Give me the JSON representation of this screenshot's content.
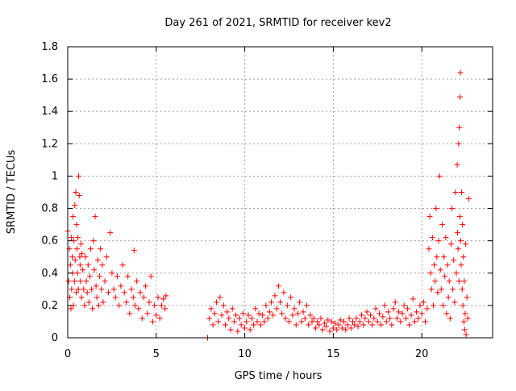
{
  "chart_data": {
    "type": "scatter",
    "title": "Day 261 of 2021, SRMTID for receiver kev2",
    "xlabel": "GPS time / hours",
    "ylabel": "SRMTID / TECUs",
    "xlim": [
      0,
      24
    ],
    "ylim": [
      0,
      1.8
    ],
    "grid": true,
    "marker": "+",
    "marker_color": "#ff0000",
    "x_ticks": [
      0,
      5,
      10,
      15,
      20
    ],
    "x_tick_labels": [
      "0",
      "5",
      "10",
      "15",
      "20"
    ],
    "y_ticks": [
      0,
      0.2,
      0.4,
      0.6,
      0.8,
      1.0,
      1.2,
      1.4,
      1.6,
      1.8
    ],
    "y_tick_labels": [
      "0",
      "0.2",
      "0.4",
      "0.6",
      "0.8",
      "1",
      "1.2",
      "1.4",
      "1.6",
      "1.8"
    ],
    "series": [
      {
        "name": "SRMTID",
        "points": [
          [
            0.0,
            0.66
          ],
          [
            0.05,
            0.35
          ],
          [
            0.1,
            0.55
          ],
          [
            0.12,
            0.25
          ],
          [
            0.15,
            0.45
          ],
          [
            0.18,
            0.18
          ],
          [
            0.2,
            0.62
          ],
          [
            0.22,
            0.3
          ],
          [
            0.25,
            0.5
          ],
          [
            0.28,
            0.4
          ],
          [
            0.3,
            0.75
          ],
          [
            0.32,
            0.2
          ],
          [
            0.35,
            0.6
          ],
          [
            0.38,
            0.35
          ],
          [
            0.4,
            0.82
          ],
          [
            0.42,
            0.48
          ],
          [
            0.45,
            0.9
          ],
          [
            0.48,
            0.28
          ],
          [
            0.5,
            0.7
          ],
          [
            0.52,
            0.55
          ],
          [
            0.55,
            0.4
          ],
          [
            0.58,
            0.62
          ],
          [
            0.6,
            0.3
          ],
          [
            0.62,
            1.0
          ],
          [
            0.65,
            0.88
          ],
          [
            0.68,
            0.5
          ],
          [
            0.7,
            0.45
          ],
          [
            0.72,
            0.35
          ],
          [
            0.75,
            0.58
          ],
          [
            0.78,
            0.25
          ],
          [
            0.8,
            0.52
          ],
          [
            0.85,
            0.42
          ],
          [
            0.9,
            0.3
          ],
          [
            0.95,
            0.2
          ],
          [
            1.0,
            0.5
          ],
          [
            1.05,
            0.35
          ],
          [
            1.1,
            0.28
          ],
          [
            1.15,
            0.45
          ],
          [
            1.2,
            0.22
          ],
          [
            1.25,
            0.38
          ],
          [
            1.3,
            0.55
          ],
          [
            1.35,
            0.3
          ],
          [
            1.4,
            0.18
          ],
          [
            1.45,
            0.6
          ],
          [
            1.5,
            0.42
          ],
          [
            1.55,
            0.75
          ],
          [
            1.6,
            0.32
          ],
          [
            1.65,
            0.25
          ],
          [
            1.7,
            0.48
          ],
          [
            1.75,
            0.2
          ],
          [
            1.8,
            0.38
          ],
          [
            1.85,
            0.55
          ],
          [
            1.9,
            0.3
          ],
          [
            1.95,
            0.45
          ],
          [
            2.0,
            0.22
          ],
          [
            2.1,
            0.35
          ],
          [
            2.2,
            0.5
          ],
          [
            2.3,
            0.28
          ],
          [
            2.4,
            0.65
          ],
          [
            2.5,
            0.4
          ],
          [
            2.6,
            0.3
          ],
          [
            2.7,
            0.25
          ],
          [
            2.8,
            0.38
          ],
          [
            2.9,
            0.2
          ],
          [
            3.0,
            0.32
          ],
          [
            3.1,
            0.45
          ],
          [
            3.2,
            0.28
          ],
          [
            3.3,
            0.22
          ],
          [
            3.4,
            0.38
          ],
          [
            3.5,
            0.15
          ],
          [
            3.6,
            0.3
          ],
          [
            3.7,
            0.25
          ],
          [
            3.75,
            0.54
          ],
          [
            3.8,
            0.2
          ],
          [
            3.9,
            0.35
          ],
          [
            4.0,
            0.18
          ],
          [
            4.1,
            0.28
          ],
          [
            4.2,
            0.12
          ],
          [
            4.3,
            0.25
          ],
          [
            4.4,
            0.32
          ],
          [
            4.5,
            0.15
          ],
          [
            4.6,
            0.22
          ],
          [
            4.7,
            0.38
          ],
          [
            4.8,
            0.1
          ],
          [
            4.9,
            0.2
          ],
          [
            5.0,
            0.14
          ],
          [
            5.1,
            0.25
          ],
          [
            5.2,
            0.12
          ],
          [
            5.3,
            0.2
          ],
          [
            5.4,
            0.24
          ],
          [
            5.5,
            0.18
          ],
          [
            5.55,
            0.26
          ],
          [
            7.9,
            0.0
          ],
          [
            8.0,
            0.12
          ],
          [
            8.1,
            0.18
          ],
          [
            8.2,
            0.08
          ],
          [
            8.3,
            0.15
          ],
          [
            8.4,
            0.22
          ],
          [
            8.5,
            0.1
          ],
          [
            8.6,
            0.25
          ],
          [
            8.7,
            0.14
          ],
          [
            8.8,
            0.2
          ],
          [
            8.9,
            0.08
          ],
          [
            9.0,
            0.16
          ],
          [
            9.1,
            0.12
          ],
          [
            9.2,
            0.05
          ],
          [
            9.3,
            0.18
          ],
          [
            9.4,
            0.1
          ],
          [
            9.5,
            0.14
          ],
          [
            9.6,
            0.04
          ],
          [
            9.7,
            0.12
          ],
          [
            9.8,
            0.08
          ],
          [
            9.9,
            0.15
          ],
          [
            10.0,
            0.06
          ],
          [
            10.1,
            0.1
          ],
          [
            10.2,
            0.14
          ],
          [
            10.3,
            0.05
          ],
          [
            10.4,
            0.12
          ],
          [
            10.5,
            0.08
          ],
          [
            10.6,
            0.18
          ],
          [
            10.7,
            0.1
          ],
          [
            10.8,
            0.15
          ],
          [
            10.9,
            0.08
          ],
          [
            11.0,
            0.14
          ],
          [
            11.1,
            0.1
          ],
          [
            11.2,
            0.2
          ],
          [
            11.3,
            0.12
          ],
          [
            11.4,
            0.16
          ],
          [
            11.5,
            0.22
          ],
          [
            11.6,
            0.14
          ],
          [
            11.7,
            0.26
          ],
          [
            11.8,
            0.18
          ],
          [
            11.9,
            0.32
          ],
          [
            12.0,
            0.22
          ],
          [
            12.1,
            0.15
          ],
          [
            12.2,
            0.28
          ],
          [
            12.3,
            0.12
          ],
          [
            12.4,
            0.2
          ],
          [
            12.5,
            0.1
          ],
          [
            12.6,
            0.25
          ],
          [
            12.7,
            0.14
          ],
          [
            12.8,
            0.18
          ],
          [
            12.9,
            0.08
          ],
          [
            13.0,
            0.15
          ],
          [
            13.1,
            0.22
          ],
          [
            13.2,
            0.1
          ],
          [
            13.3,
            0.16
          ],
          [
            13.4,
            0.12
          ],
          [
            13.5,
            0.2
          ],
          [
            13.6,
            0.08
          ],
          [
            13.7,
            0.14
          ],
          [
            13.8,
            0.1
          ],
          [
            13.9,
            0.12
          ],
          [
            14.0,
            0.06
          ],
          [
            14.1,
            0.1
          ],
          [
            14.2,
            0.08
          ],
          [
            14.3,
            0.12
          ],
          [
            14.4,
            0.05
          ],
          [
            14.5,
            0.09
          ],
          [
            14.6,
            0.07
          ],
          [
            14.7,
            0.11
          ],
          [
            14.8,
            0.04
          ],
          [
            14.9,
            0.1
          ],
          [
            15.0,
            0.06
          ],
          [
            15.1,
            0.09
          ],
          [
            15.2,
            0.05
          ],
          [
            15.3,
            0.08
          ],
          [
            15.4,
            0.11
          ],
          [
            15.5,
            0.06
          ],
          [
            15.6,
            0.1
          ],
          [
            15.7,
            0.05
          ],
          [
            15.8,
            0.08
          ],
          [
            15.9,
            0.12
          ],
          [
            16.0,
            0.06
          ],
          [
            16.1,
            0.1
          ],
          [
            16.2,
            0.08
          ],
          [
            16.3,
            0.12
          ],
          [
            16.4,
            0.07
          ],
          [
            16.5,
            0.1
          ],
          [
            16.6,
            0.14
          ],
          [
            16.7,
            0.08
          ],
          [
            16.8,
            0.12
          ],
          [
            16.9,
            0.16
          ],
          [
            17.0,
            0.1
          ],
          [
            17.1,
            0.14
          ],
          [
            17.2,
            0.08
          ],
          [
            17.3,
            0.12
          ],
          [
            17.4,
            0.18
          ],
          [
            17.5,
            0.1
          ],
          [
            17.6,
            0.15
          ],
          [
            17.7,
            0.08
          ],
          [
            17.8,
            0.13
          ],
          [
            17.9,
            0.2
          ],
          [
            18.0,
            0.1
          ],
          [
            18.1,
            0.16
          ],
          [
            18.2,
            0.12
          ],
          [
            18.3,
            0.08
          ],
          [
            18.4,
            0.18
          ],
          [
            18.5,
            0.22
          ],
          [
            18.6,
            0.12
          ],
          [
            18.7,
            0.16
          ],
          [
            18.8,
            0.1
          ],
          [
            18.9,
            0.15
          ],
          [
            19.0,
            0.2
          ],
          [
            19.1,
            0.12
          ],
          [
            19.2,
            0.18
          ],
          [
            19.3,
            0.08
          ],
          [
            19.4,
            0.14
          ],
          [
            19.5,
            0.24
          ],
          [
            19.6,
            0.1
          ],
          [
            19.7,
            0.16
          ],
          [
            19.8,
            0.12
          ],
          [
            19.9,
            0.2
          ],
          [
            20.0,
            0.15
          ],
          [
            20.1,
            0.22
          ],
          [
            20.2,
            0.1
          ],
          [
            20.3,
            0.18
          ],
          [
            20.4,
            0.55
          ],
          [
            20.45,
            0.75
          ],
          [
            20.5,
            0.4
          ],
          [
            20.55,
            0.3
          ],
          [
            20.6,
            0.62
          ],
          [
            20.65,
            0.2
          ],
          [
            20.7,
            0.45
          ],
          [
            20.75,
            0.35
          ],
          [
            20.8,
            0.8
          ],
          [
            20.85,
            0.5
          ],
          [
            20.9,
            0.28
          ],
          [
            20.95,
            0.6
          ],
          [
            21.0,
            1.0
          ],
          [
            21.05,
            0.42
          ],
          [
            21.1,
            0.3
          ],
          [
            21.15,
            0.7
          ],
          [
            21.2,
            0.2
          ],
          [
            21.25,
            0.5
          ],
          [
            21.3,
            0.38
          ],
          [
            21.35,
            0.62
          ],
          [
            21.4,
            0.15
          ],
          [
            21.45,
            0.45
          ],
          [
            21.5,
            0.25
          ],
          [
            21.55,
            0.35
          ],
          [
            21.6,
            0.12
          ],
          [
            21.65,
            0.58
          ],
          [
            21.7,
            0.8
          ],
          [
            21.75,
            0.3
          ],
          [
            21.8,
            0.48
          ],
          [
            21.85,
            0.22
          ],
          [
            21.9,
            0.9
          ],
          [
            21.95,
            0.4
          ],
          [
            22.0,
            1.07
          ],
          [
            22.02,
            0.65
          ],
          [
            22.05,
            0.55
          ],
          [
            22.08,
            1.2
          ],
          [
            22.1,
            0.35
          ],
          [
            22.12,
            1.3
          ],
          [
            22.14,
            0.75
          ],
          [
            22.16,
            1.49
          ],
          [
            22.18,
            1.64
          ],
          [
            22.2,
            0.6
          ],
          [
            22.22,
            0.45
          ],
          [
            22.25,
            0.9
          ],
          [
            22.28,
            0.3
          ],
          [
            22.3,
            0.7
          ],
          [
            22.32,
            0.2
          ],
          [
            22.35,
            0.5
          ],
          [
            22.38,
            0.1
          ],
          [
            22.4,
            0.35
          ],
          [
            22.42,
            0.05
          ],
          [
            22.45,
            0.15
          ],
          [
            22.48,
            0.58
          ],
          [
            22.5,
            0.02
          ],
          [
            22.55,
            0.25
          ],
          [
            22.6,
            0.12
          ],
          [
            22.65,
            0.86
          ]
        ]
      }
    ]
  }
}
